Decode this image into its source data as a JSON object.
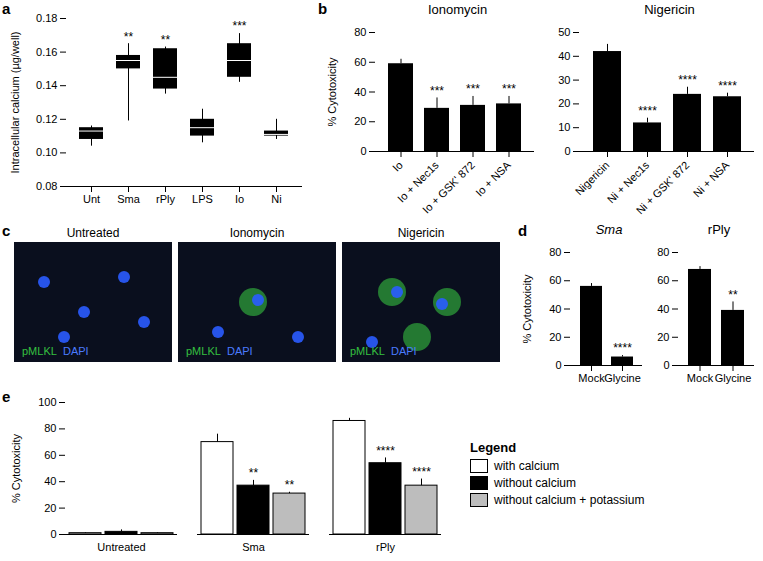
{
  "chart_data": [
    {
      "panel": "a",
      "type": "box",
      "categories": [
        "Unt",
        "Sma",
        "rPly",
        "LPS",
        "Io",
        "Ni"
      ],
      "min": [
        0.104,
        0.119,
        0.135,
        0.106,
        0.142,
        0.108
      ],
      "q1": [
        0.108,
        0.15,
        0.138,
        0.11,
        0.145,
        0.11
      ],
      "median": [
        0.113,
        0.155,
        0.145,
        0.115,
        0.155,
        0.111
      ],
      "q3": [
        0.115,
        0.158,
        0.162,
        0.12,
        0.165,
        0.113
      ],
      "max": [
        0.116,
        0.165,
        0.163,
        0.126,
        0.171,
        0.12
      ],
      "significance": [
        null,
        "**",
        "**",
        null,
        "***",
        null
      ],
      "color": "#000000",
      "y_label": "Intracellular calcium (µg/well)",
      "ylim": [
        0.08,
        0.18
      ],
      "yticks": [
        0.08,
        {
          "value": 0.1,
          "label": "0.10"
        },
        0.12,
        0.14,
        0.16,
        0.18
      ]
    },
    {
      "panel": "b",
      "type": "bar",
      "title": "Ionomycin",
      "categories": [
        "Io",
        "Io + Nec1s",
        "Io + GSK' 872",
        "Io + NSA"
      ],
      "values": [
        59,
        29,
        31,
        32
      ],
      "errors": [
        3,
        7,
        6,
        5
      ],
      "significance": [
        null,
        "***",
        "***",
        "***"
      ],
      "color": "#000000",
      "y_label": "% Cytotoxicity",
      "ylim": [
        0,
        80
      ],
      "yticks": [
        0,
        20,
        40,
        60,
        80
      ]
    },
    {
      "type": "bar",
      "title": "Nigericin",
      "categories": [
        "Nigericin",
        "Ni + Nec1s",
        "Ni + GSK' 872",
        "Ni + NSA"
      ],
      "values": [
        42,
        12,
        24,
        23
      ],
      "errors": [
        3,
        2,
        3,
        1.5
      ],
      "significance": [
        null,
        "****",
        "****",
        "****"
      ],
      "color": "#000000",
      "ylim": [
        0,
        50
      ],
      "yticks": [
        0,
        10,
        20,
        30,
        40,
        50
      ]
    },
    {
      "panel": "d",
      "type": "bar",
      "title": "Sma",
      "categories": [
        "Mock",
        "Glycine"
      ],
      "values": [
        56,
        6
      ],
      "errors": [
        2,
        1
      ],
      "significance": [
        null,
        "****"
      ],
      "color": "#000000",
      "y_label": "% Cytotoxicity",
      "ylim": [
        0,
        80
      ],
      "yticks": [
        0,
        20,
        40,
        60,
        80
      ]
    },
    {
      "type": "bar",
      "title": "rPly",
      "categories": [
        "Mock",
        "Glycine"
      ],
      "values": [
        68,
        39
      ],
      "errors": [
        2,
        6
      ],
      "significance": [
        null,
        "**"
      ],
      "color": "#000000",
      "ylim": [
        0,
        80
      ],
      "yticks": [
        0,
        20,
        40,
        60,
        80
      ]
    },
    {
      "panel": "e",
      "type": "grouped_bar",
      "categories": [
        "Untreated",
        "Sma",
        "rPly"
      ],
      "series": [
        {
          "name": "with calcium",
          "color": "#ffffff",
          "values": [
            1,
            70,
            86
          ],
          "errors": [
            0.5,
            6,
            2
          ],
          "significance": [
            null,
            null,
            null
          ]
        },
        {
          "name": "without calcium",
          "color": "#000000",
          "values": [
            2,
            37,
            54
          ],
          "errors": [
            1.5,
            4,
            4
          ],
          "significance": [
            null,
            "**",
            "****"
          ]
        },
        {
          "name": "without calcium + potassium",
          "color": "#bdbdbd",
          "values": [
            1,
            31,
            37
          ],
          "errors": [
            0.5,
            1,
            5
          ],
          "significance": [
            null,
            "**",
            "****"
          ]
        }
      ],
      "legend_title": "Legend",
      "legend": "right",
      "y_label": "% Cytotoxicity",
      "ylim": [
        0,
        100
      ],
      "yticks": [
        0,
        20,
        40,
        60,
        80,
        100
      ]
    }
  ],
  "panel_c": {
    "panel": "c",
    "images": [
      {
        "title": "Untreated",
        "labels": [
          "pMLKL",
          "DAPI"
        ]
      },
      {
        "title": "Ionomycin",
        "labels": [
          "pMLKL",
          "DAPI"
        ]
      },
      {
        "title": "Nigericin",
        "labels": [
          "pMLKL",
          "DAPI"
        ]
      }
    ]
  }
}
